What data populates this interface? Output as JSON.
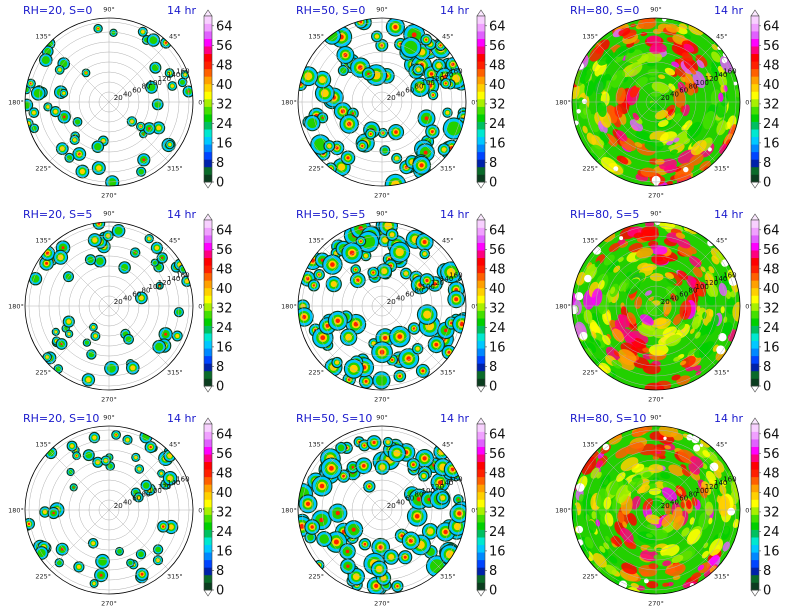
{
  "chart_data": [
    {
      "type": "heatmap",
      "subtype": "polar-contour",
      "title": "RH=20, S=0",
      "time_label": "14 hr",
      "rh": 20,
      "s": 0,
      "coverage": 0.25,
      "angle_ticks": [
        "90°",
        "45°",
        "0°",
        "315°",
        "270°",
        "225°",
        "180°",
        "135°"
      ],
      "radial_ticks": [
        "20",
        "40",
        "60",
        "80",
        "100",
        "120",
        "140",
        "160"
      ],
      "colorbar": {
        "ticks": [
          "0",
          "8",
          "16",
          "24",
          "32",
          "40",
          "48",
          "56",
          "64"
        ],
        "range": [
          0,
          68
        ]
      }
    },
    {
      "type": "heatmap",
      "subtype": "polar-contour",
      "title": "RH=50, S=0",
      "time_label": "14 hr",
      "rh": 50,
      "s": 0,
      "coverage": 0.5,
      "angle_ticks": [
        "90°",
        "45°",
        "0°",
        "315°",
        "270°",
        "225°",
        "180°",
        "135°"
      ],
      "radial_ticks": [
        "20",
        "40",
        "60",
        "80",
        "100",
        "120",
        "140",
        "160"
      ],
      "colorbar": {
        "ticks": [
          "0",
          "8",
          "16",
          "24",
          "32",
          "40",
          "48",
          "56",
          "64"
        ],
        "range": [
          0,
          68
        ]
      }
    },
    {
      "type": "heatmap",
      "subtype": "polar-contour",
      "title": "RH=80, S=0",
      "time_label": "14 hr",
      "rh": 80,
      "s": 0,
      "coverage": 0.97,
      "angle_ticks": [
        "90°",
        "45°",
        "0°",
        "315°",
        "270°",
        "225°",
        "180°",
        "135°"
      ],
      "radial_ticks": [
        "20",
        "40",
        "60",
        "80",
        "100",
        "120",
        "140",
        "160"
      ],
      "colorbar": {
        "ticks": [
          "0",
          "8",
          "16",
          "24",
          "32",
          "40",
          "48",
          "56",
          "64"
        ],
        "range": [
          0,
          68
        ]
      }
    },
    {
      "type": "heatmap",
      "subtype": "polar-contour",
      "title": "RH=20, S=5",
      "time_label": "14 hr",
      "rh": 20,
      "s": 5,
      "coverage": 0.25,
      "angle_ticks": [
        "90°",
        "45°",
        "0°",
        "315°",
        "270°",
        "225°",
        "180°",
        "135°"
      ],
      "radial_ticks": [
        "20",
        "40",
        "60",
        "80",
        "100",
        "120",
        "140",
        "160"
      ],
      "colorbar": {
        "ticks": [
          "0",
          "8",
          "16",
          "24",
          "32",
          "40",
          "48",
          "56",
          "64"
        ],
        "range": [
          0,
          68
        ]
      }
    },
    {
      "type": "heatmap",
      "subtype": "polar-contour",
      "title": "RH=50, S=5",
      "time_label": "14 hr",
      "rh": 50,
      "s": 5,
      "coverage": 0.5,
      "angle_ticks": [
        "90°",
        "45°",
        "0°",
        "315°",
        "270°",
        "225°",
        "180°",
        "135°"
      ],
      "radial_ticks": [
        "20",
        "40",
        "60",
        "80",
        "100",
        "120",
        "140",
        "160"
      ],
      "colorbar": {
        "ticks": [
          "0",
          "8",
          "16",
          "24",
          "32",
          "40",
          "48",
          "56",
          "64"
        ],
        "range": [
          0,
          68
        ]
      }
    },
    {
      "type": "heatmap",
      "subtype": "polar-contour",
      "title": "RH=80, S=5",
      "time_label": "14 hr",
      "rh": 80,
      "s": 5,
      "coverage": 0.97,
      "angle_ticks": [
        "90°",
        "45°",
        "0°",
        "315°",
        "270°",
        "225°",
        "180°",
        "135°"
      ],
      "radial_ticks": [
        "20",
        "40",
        "60",
        "80",
        "100",
        "120",
        "140",
        "160"
      ],
      "colorbar": {
        "ticks": [
          "0",
          "8",
          "16",
          "24",
          "32",
          "40",
          "48",
          "56",
          "64"
        ],
        "range": [
          0,
          68
        ]
      }
    },
    {
      "type": "heatmap",
      "subtype": "polar-contour",
      "title": "RH=20, S=10",
      "time_label": "14 hr",
      "rh": 20,
      "s": 10,
      "coverage": 0.22,
      "angle_ticks": [
        "90°",
        "45°",
        "0°",
        "315°",
        "270°",
        "225°",
        "180°",
        "135°"
      ],
      "radial_ticks": [
        "20",
        "40",
        "60",
        "80",
        "100",
        "120",
        "140",
        "160"
      ],
      "colorbar": {
        "ticks": [
          "0",
          "8",
          "16",
          "24",
          "32",
          "40",
          "48",
          "56",
          "64"
        ],
        "range": [
          0,
          68
        ]
      }
    },
    {
      "type": "heatmap",
      "subtype": "polar-contour",
      "title": "RH=50, S=10",
      "time_label": "14 hr",
      "rh": 50,
      "s": 10,
      "coverage": 0.5,
      "angle_ticks": [
        "90°",
        "45°",
        "0°",
        "315°",
        "270°",
        "225°",
        "180°",
        "135°"
      ],
      "radial_ticks": [
        "20",
        "40",
        "60",
        "80",
        "100",
        "120",
        "140",
        "160"
      ],
      "colorbar": {
        "ticks": [
          "0",
          "8",
          "16",
          "24",
          "32",
          "40",
          "48",
          "56",
          "64"
        ],
        "range": [
          0,
          68
        ]
      }
    },
    {
      "type": "heatmap",
      "subtype": "polar-contour",
      "title": "RH=80, S=10",
      "time_label": "14 hr",
      "rh": 80,
      "s": 10,
      "coverage": 0.97,
      "angle_ticks": [
        "90°",
        "45°",
        "0°",
        "315°",
        "270°",
        "225°",
        "180°",
        "135°"
      ],
      "radial_ticks": [
        "20",
        "40",
        "60",
        "80",
        "100",
        "120",
        "140",
        "160"
      ],
      "colorbar": {
        "ticks": [
          "0",
          "8",
          "16",
          "24",
          "32",
          "40",
          "48",
          "56",
          "64"
        ],
        "range": [
          0,
          68
        ]
      }
    }
  ],
  "colors": {
    "levels": [
      "#0b3d1f",
      "#0a6b2a",
      "#0022aa",
      "#0044ff",
      "#0088ff",
      "#00c8ff",
      "#00e8d0",
      "#00c060",
      "#00d000",
      "#44e000",
      "#a8f000",
      "#ffff00",
      "#ffd000",
      "#ffa000",
      "#ff6000",
      "#ff2000",
      "#ff0000",
      "#ff0080",
      "#ff00ff",
      "#e060ff",
      "#f0a0ff",
      "#f8d0ff"
    ],
    "title": "#1a1acc"
  }
}
